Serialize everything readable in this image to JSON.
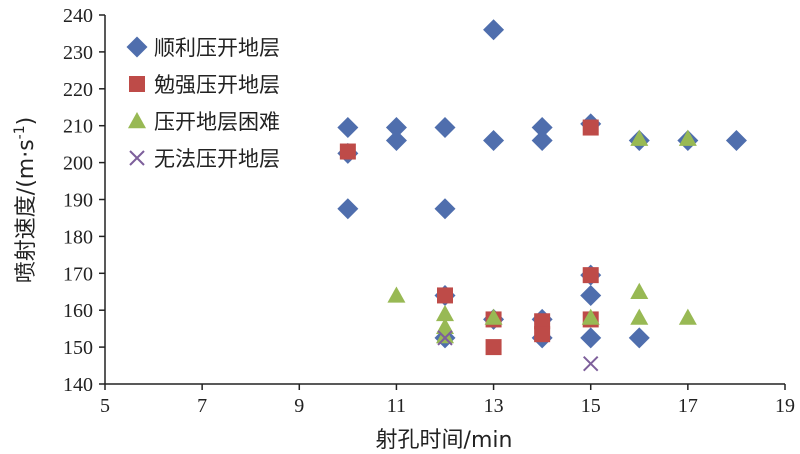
{
  "chart_data": {
    "type": "scatter",
    "xlabel": "射孔时间/min",
    "ylabel_main": "喷射速度/(m·s",
    "ylabel_sup": "-1",
    "ylabel_close": ")",
    "xlim": [
      5,
      19
    ],
    "ylim": [
      140,
      240
    ],
    "x_ticks": [
      "5",
      "7",
      "9",
      "11",
      "13",
      "15",
      "17",
      "19"
    ],
    "y_ticks": [
      "140",
      "150",
      "160",
      "170",
      "180",
      "190",
      "200",
      "210",
      "220",
      "230",
      "240"
    ],
    "grid": false,
    "legend_position": "top-left",
    "series": [
      {
        "name": "顺利压开地层",
        "marker": "diamond",
        "color": "#4F6EAD",
        "points": [
          [
            10,
            209.5
          ],
          [
            10,
            202.5
          ],
          [
            10,
            187.5
          ],
          [
            11,
            209.5
          ],
          [
            11,
            206
          ],
          [
            12,
            209.5
          ],
          [
            12,
            187.5
          ],
          [
            12,
            164
          ],
          [
            12,
            152.5
          ],
          [
            13,
            236
          ],
          [
            13,
            206
          ],
          [
            13,
            157.5
          ],
          [
            14,
            209.5
          ],
          [
            14,
            206
          ],
          [
            14,
            157.5
          ],
          [
            14,
            152.5
          ],
          [
            15,
            210.5
          ],
          [
            15,
            169.5
          ],
          [
            15,
            164
          ],
          [
            15,
            152.5
          ],
          [
            16,
            206
          ],
          [
            16,
            152.5
          ],
          [
            17,
            206
          ],
          [
            18,
            206
          ]
        ]
      },
      {
        "name": "勉强压开地层",
        "marker": "square",
        "color": "#BE4B48",
        "points": [
          [
            10,
            203
          ],
          [
            12,
            164
          ],
          [
            13,
            157.5
          ],
          [
            13,
            150
          ],
          [
            14,
            157
          ],
          [
            14,
            153.5
          ],
          [
            15,
            209.5
          ],
          [
            15,
            169.5
          ],
          [
            15,
            157.5
          ]
        ]
      },
      {
        "name": "压开地层困难",
        "marker": "triangle",
        "color": "#98B954",
        "points": [
          [
            11,
            164
          ],
          [
            12,
            159
          ],
          [
            12,
            155.5
          ],
          [
            12,
            153
          ],
          [
            13,
            158
          ],
          [
            15,
            158
          ],
          [
            16,
            206.5
          ],
          [
            16,
            165
          ],
          [
            16,
            158
          ],
          [
            17,
            206.5
          ],
          [
            17,
            158
          ]
        ]
      },
      {
        "name": "无法压开地层",
        "marker": "x",
        "color": "#7D5F9B",
        "points": [
          [
            12,
            152.5
          ],
          [
            15,
            145.5
          ]
        ]
      }
    ]
  }
}
